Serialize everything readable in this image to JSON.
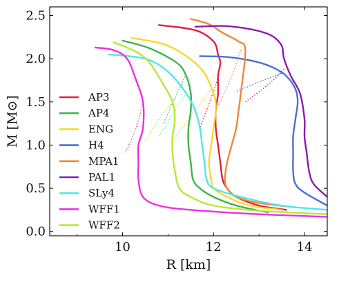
{
  "chart_data": {
    "type": "line",
    "title": "",
    "xlabel": "R [km]",
    "ylabel": "M [M⊙]",
    "xlim": [
      8.4,
      14.5
    ],
    "ylim": [
      -0.05,
      2.6
    ],
    "x_ticks": [
      10,
      12,
      14
    ],
    "y_ticks": [
      0.0,
      0.5,
      1.0,
      1.5,
      2.0,
      2.5
    ],
    "x_tick_labels": [
      "10",
      "12",
      "14"
    ],
    "y_tick_labels": [
      "0.0",
      "0.5",
      "1.0",
      "1.5",
      "2.0",
      "2.5"
    ],
    "grid": false,
    "legend_position": "left",
    "series": [
      {
        "name": "AP3",
        "color": "#e0203e",
        "x": [
          13.6,
          13.0,
          12.5,
          12.3,
          12.2,
          12.15,
          12.1,
          12.05,
          12.05,
          12.1,
          12.1,
          12.15,
          12.1,
          12.0,
          11.6,
          10.8
        ],
        "y": [
          0.25,
          0.3,
          0.4,
          0.5,
          0.6,
          0.8,
          1.0,
          1.2,
          1.4,
          1.6,
          1.8,
          1.95,
          2.05,
          2.2,
          2.33,
          2.39
        ]
      },
      {
        "name": "AP4",
        "color": "#3fb34a",
        "x": [
          13.2,
          12.5,
          12.0,
          11.7,
          11.55,
          11.5,
          11.45,
          11.45,
          11.5,
          11.5,
          11.4,
          11.2,
          10.6,
          10.0
        ],
        "y": [
          0.22,
          0.3,
          0.4,
          0.5,
          0.6,
          0.8,
          1.0,
          1.2,
          1.4,
          1.6,
          1.8,
          1.95,
          2.12,
          2.21
        ]
      },
      {
        "name": "ENG",
        "color": "#f7d82a",
        "x": [
          13.5,
          12.8,
          12.3,
          12.0,
          11.95,
          11.9,
          11.95,
          12.0,
          12.05,
          12.0,
          11.7,
          11.0,
          10.2
        ],
        "y": [
          0.25,
          0.3,
          0.4,
          0.5,
          0.6,
          0.8,
          1.0,
          1.2,
          1.4,
          1.6,
          1.9,
          2.15,
          2.24
        ]
      },
      {
        "name": "H4",
        "color": "#4a6fd0",
        "x": [
          14.5,
          14.0,
          13.8,
          13.75,
          13.75,
          13.75,
          13.8,
          13.85,
          13.8,
          13.6,
          13.3,
          12.9,
          12.3,
          11.7
        ],
        "y": [
          0.3,
          0.45,
          0.55,
          0.7,
          0.9,
          1.1,
          1.3,
          1.5,
          1.65,
          1.8,
          1.9,
          1.97,
          2.02,
          2.03
        ]
      },
      {
        "name": "MPA1",
        "color": "#f0873a",
        "x": [
          13.8,
          13.0,
          12.5,
          12.3,
          12.25,
          12.3,
          12.4,
          12.5,
          12.55,
          12.6,
          12.7,
          12.55,
          12.2,
          11.9,
          11.5
        ],
        "y": [
          0.28,
          0.33,
          0.4,
          0.5,
          0.6,
          0.8,
          1.0,
          1.2,
          1.4,
          1.6,
          2.1,
          2.2,
          2.3,
          2.4,
          2.46
        ]
      },
      {
        "name": "PAL1",
        "color": "#8b1ab0",
        "x": [
          14.5,
          14.2,
          14.1,
          14.05,
          14.0,
          14.0,
          13.9,
          13.7,
          13.55,
          13.5,
          13.3,
          13.0,
          12.6,
          12.2,
          11.6
        ],
        "y": [
          0.4,
          0.55,
          0.7,
          0.9,
          1.1,
          1.3,
          1.6,
          1.8,
          2.0,
          2.15,
          2.26,
          2.32,
          2.36,
          2.38,
          2.37
        ]
      },
      {
        "name": "SLy4",
        "color": "#4ee8ea",
        "x": [
          14.5,
          13.5,
          12.6,
          12.0,
          11.85,
          11.8,
          11.75,
          11.7,
          11.6,
          11.4,
          11.0,
          10.5,
          9.7
        ],
        "y": [
          0.25,
          0.3,
          0.4,
          0.5,
          0.6,
          0.8,
          1.0,
          1.2,
          1.4,
          1.6,
          1.85,
          2.0,
          2.05
        ]
      },
      {
        "name": "WFF1",
        "color": "#f02ee0",
        "x": [
          14.5,
          13.0,
          11.5,
          10.8,
          10.45,
          10.35,
          10.35,
          10.35,
          10.45,
          10.45,
          10.3,
          10.1,
          9.8,
          9.4
        ],
        "y": [
          0.17,
          0.2,
          0.25,
          0.3,
          0.4,
          0.6,
          0.8,
          1.0,
          1.2,
          1.5,
          1.75,
          2.0,
          2.1,
          2.13
        ]
      },
      {
        "name": "WFF2",
        "color": "#b6e83a",
        "x": [
          14.5,
          13.0,
          12.0,
          11.5,
          11.25,
          11.15,
          11.1,
          11.1,
          11.15,
          11.1,
          10.9,
          10.6,
          10.3,
          9.8
        ],
        "y": [
          0.2,
          0.24,
          0.3,
          0.4,
          0.5,
          0.7,
          0.9,
          1.1,
          1.3,
          1.5,
          1.7,
          1.95,
          2.08,
          2.19
        ]
      }
    ],
    "unstable_branches": [
      {
        "name": "AP3",
        "color": "#e0203e",
        "x": [
          12.15,
          12.05,
          11.7
        ],
        "y": [
          1.95,
          1.7,
          1.2
        ]
      },
      {
        "name": "AP4",
        "color": "#3fb34a",
        "x": [
          11.4,
          11.2,
          10.9
        ],
        "y": [
          1.82,
          1.6,
          1.25
        ]
      },
      {
        "name": "ENG",
        "color": "#f7d82a",
        "x": [
          11.95,
          11.6,
          11.1
        ],
        "y": [
          1.65,
          1.4,
          1.05
        ]
      },
      {
        "name": "H4",
        "color": "#4a6fd0",
        "x": [
          13.55,
          13.1,
          12.5
        ],
        "y": [
          1.84,
          1.75,
          1.62
        ]
      },
      {
        "name": "MPA1",
        "color": "#f0873a",
        "x": [
          12.6,
          12.4,
          12.1
        ],
        "y": [
          2.1,
          1.8,
          1.45
        ]
      },
      {
        "name": "PAL1",
        "color": "#8b1ab0",
        "x": [
          13.55,
          13.2,
          12.7
        ],
        "y": [
          1.88,
          1.7,
          1.5
        ]
      },
      {
        "name": "SLy4",
        "color": "#4ee8ea",
        "x": [
          11.4,
          11.1,
          10.8
        ],
        "y": [
          1.6,
          1.35,
          1.1
        ]
      },
      {
        "name": "WFF1",
        "color": "#f02ee0",
        "x": [
          10.45,
          10.3,
          10.05
        ],
        "y": [
          1.5,
          1.2,
          0.9
        ]
      },
      {
        "name": "WFF2",
        "color": "#b6e83a",
        "x": [
          11.1,
          10.8,
          10.5
        ],
        "y": [
          1.5,
          1.3,
          1.05
        ]
      }
    ]
  }
}
